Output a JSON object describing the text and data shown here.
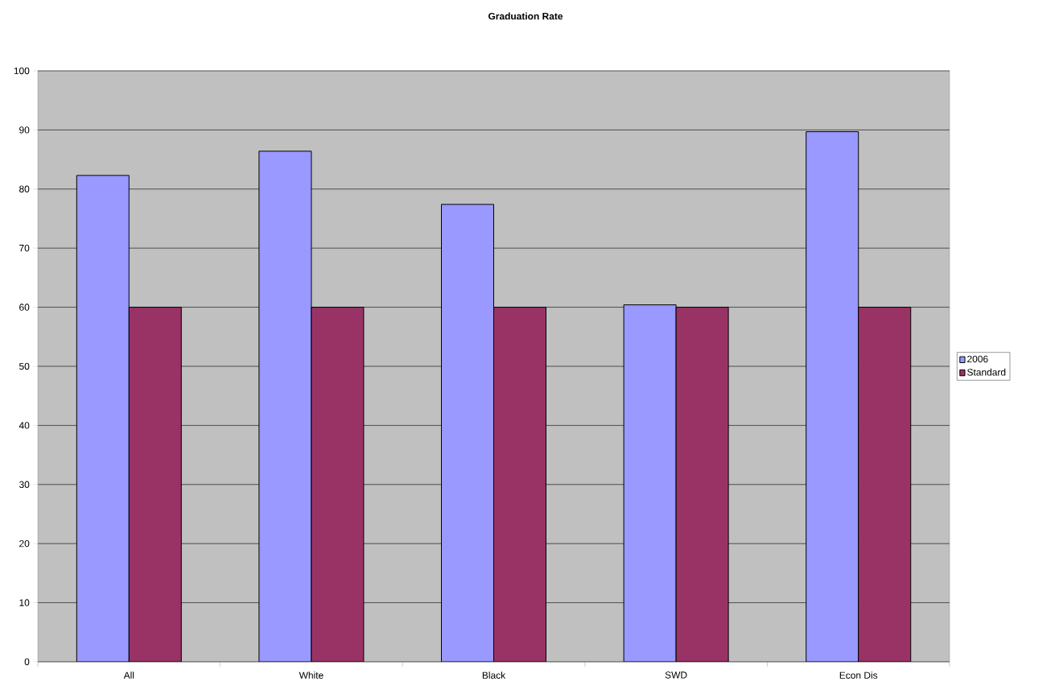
{
  "chart_data": {
    "type": "bar",
    "title": "Graduation Rate",
    "categories": [
      "All",
      "White",
      "Black",
      "SWD",
      "Econ Dis"
    ],
    "series": [
      {
        "name": "2006",
        "color": "#9999ff",
        "values": [
          82.3,
          86.4,
          77.4,
          60.4,
          89.7
        ]
      },
      {
        "name": "Standard",
        "color": "#993366",
        "values": [
          60,
          60,
          60,
          60,
          60
        ]
      }
    ],
    "ylim": [
      0,
      100
    ],
    "yticks": [
      0,
      10,
      20,
      30,
      40,
      50,
      60,
      70,
      80,
      90,
      100
    ],
    "grid": "y",
    "legend": "right"
  }
}
